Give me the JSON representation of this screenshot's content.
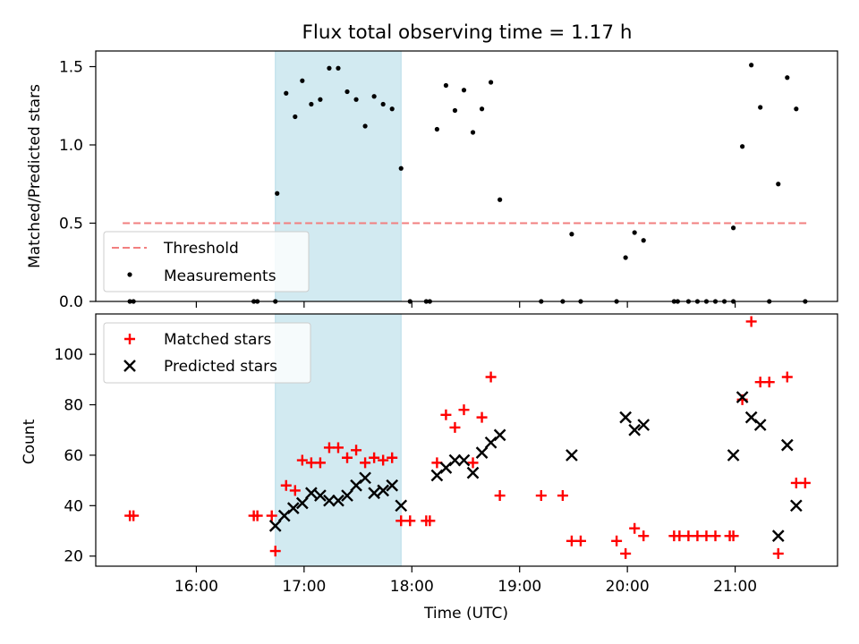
{
  "chart_data": [
    {
      "type": "scatter",
      "title": "Flux total observing time = 1.17 h",
      "ylabel": "Matched/Predicted stars",
      "xlim": [
        "15:04",
        "21:57"
      ],
      "ylim": [
        0,
        1.6
      ],
      "yticks": [
        "0.0",
        "0.5",
        "1.0",
        "1.5"
      ],
      "grid": false,
      "legend_position": "lower-left",
      "highlight_span": {
        "start": "16:44",
        "end": "17:54",
        "color": "#d2eaf1"
      },
      "threshold": {
        "name": "Threshold",
        "value": 0.5,
        "x_start": "15:19",
        "x_end": "21:41",
        "color": "#f27f7f",
        "style": "dashed"
      },
      "series": [
        {
          "name": "Measurements",
          "color": "#000000",
          "marker": "dot",
          "points": [
            [
              "15:23",
              0
            ],
            [
              "15:25",
              0
            ],
            [
              "16:32",
              0
            ],
            [
              "16:34",
              0
            ],
            [
              "16:44",
              0
            ],
            [
              "16:45",
              0.69
            ],
            [
              "16:50",
              1.33
            ],
            [
              "16:55",
              1.18
            ],
            [
              "16:59",
              1.41
            ],
            [
              "17:04",
              1.26
            ],
            [
              "17:09",
              1.29
            ],
            [
              "17:14",
              1.49
            ],
            [
              "17:19",
              1.49
            ],
            [
              "17:24",
              1.34
            ],
            [
              "17:29",
              1.29
            ],
            [
              "17:34",
              1.12
            ],
            [
              "17:39",
              1.31
            ],
            [
              "17:44",
              1.26
            ],
            [
              "17:49",
              1.23
            ],
            [
              "17:54",
              0.85
            ],
            [
              "17:59",
              0
            ],
            [
              "18:08",
              0
            ],
            [
              "18:10",
              0
            ],
            [
              "18:14",
              1.1
            ],
            [
              "18:19",
              1.38
            ],
            [
              "18:24",
              1.22
            ],
            [
              "18:29",
              1.35
            ],
            [
              "18:34",
              1.08
            ],
            [
              "18:39",
              1.23
            ],
            [
              "18:44",
              1.4
            ],
            [
              "18:49",
              0.65
            ],
            [
              "19:12",
              0
            ],
            [
              "19:24",
              0
            ],
            [
              "19:29",
              0.43
            ],
            [
              "19:34",
              0
            ],
            [
              "19:54",
              0
            ],
            [
              "19:59",
              0.28
            ],
            [
              "20:04",
              0.44
            ],
            [
              "20:09",
              0.39
            ],
            [
              "20:26",
              0
            ],
            [
              "20:28",
              0
            ],
            [
              "20:34",
              0
            ],
            [
              "20:39",
              0
            ],
            [
              "20:44",
              0
            ],
            [
              "20:49",
              0
            ],
            [
              "20:54",
              0
            ],
            [
              "20:59",
              0
            ],
            [
              "20:59",
              0.47
            ],
            [
              "21:04",
              0.99
            ],
            [
              "21:09",
              1.51
            ],
            [
              "21:14",
              1.24
            ],
            [
              "21:19",
              0
            ],
            [
              "21:24",
              0.75
            ],
            [
              "21:29",
              1.43
            ],
            [
              "21:34",
              1.23
            ],
            [
              "21:39",
              0
            ]
          ]
        }
      ]
    },
    {
      "type": "scatter",
      "ylabel": "Count",
      "xlabel": "Time (UTC)",
      "xlim": [
        "15:04",
        "21:57"
      ],
      "ylim": [
        16,
        116
      ],
      "xticks": [
        "16:00",
        "17:00",
        "18:00",
        "19:00",
        "20:00",
        "21:00"
      ],
      "yticks": [
        "20",
        "40",
        "60",
        "80",
        "100"
      ],
      "grid": false,
      "legend_position": "upper-left",
      "highlight_span": {
        "start": "16:44",
        "end": "17:54",
        "color": "#d2eaf1"
      },
      "series": [
        {
          "name": "Matched stars",
          "color": "#ff0000",
          "marker": "plus",
          "points": [
            [
              "15:23",
              36
            ],
            [
              "15:25",
              36
            ],
            [
              "16:32",
              36
            ],
            [
              "16:34",
              36
            ],
            [
              "16:42",
              36
            ],
            [
              "16:44",
              22
            ],
            [
              "16:50",
              48
            ],
            [
              "16:55",
              46
            ],
            [
              "16:59",
              58
            ],
            [
              "17:04",
              57
            ],
            [
              "17:09",
              57
            ],
            [
              "17:14",
              63
            ],
            [
              "17:19",
              63
            ],
            [
              "17:24",
              59
            ],
            [
              "17:29",
              62
            ],
            [
              "17:34",
              57
            ],
            [
              "17:39",
              59
            ],
            [
              "17:44",
              58
            ],
            [
              "17:49",
              59
            ],
            [
              "17:54",
              34
            ],
            [
              "17:59",
              34
            ],
            [
              "18:08",
              34
            ],
            [
              "18:10",
              34
            ],
            [
              "18:14",
              57
            ],
            [
              "18:19",
              76
            ],
            [
              "18:24",
              71
            ],
            [
              "18:29",
              78
            ],
            [
              "18:34",
              57
            ],
            [
              "18:39",
              75
            ],
            [
              "18:44",
              91
            ],
            [
              "18:49",
              44
            ],
            [
              "19:12",
              44
            ],
            [
              "19:24",
              44
            ],
            [
              "19:29",
              26
            ],
            [
              "19:34",
              26
            ],
            [
              "19:54",
              26
            ],
            [
              "19:59",
              21
            ],
            [
              "20:04",
              31
            ],
            [
              "20:09",
              28
            ],
            [
              "20:26",
              28
            ],
            [
              "20:29",
              28
            ],
            [
              "20:34",
              28
            ],
            [
              "20:39",
              28
            ],
            [
              "20:44",
              28
            ],
            [
              "20:49",
              28
            ],
            [
              "20:57",
              28
            ],
            [
              "20:59",
              28
            ],
            [
              "21:04",
              82
            ],
            [
              "21:09",
              113
            ],
            [
              "21:14",
              89
            ],
            [
              "21:19",
              89
            ],
            [
              "21:24",
              21
            ],
            [
              "21:29",
              91
            ],
            [
              "21:34",
              49
            ],
            [
              "21:39",
              49
            ]
          ]
        },
        {
          "name": "Predicted stars",
          "color": "#000000",
          "marker": "x",
          "points": [
            [
              "16:44",
              32
            ],
            [
              "16:49",
              36
            ],
            [
              "16:54",
              39
            ],
            [
              "16:59",
              41
            ],
            [
              "17:04",
              45
            ],
            [
              "17:09",
              44
            ],
            [
              "17:14",
              42
            ],
            [
              "17:19",
              42
            ],
            [
              "17:24",
              44
            ],
            [
              "17:29",
              48
            ],
            [
              "17:34",
              51
            ],
            [
              "17:39",
              45
            ],
            [
              "17:44",
              46
            ],
            [
              "17:49",
              48
            ],
            [
              "17:54",
              40
            ],
            [
              "18:14",
              52
            ],
            [
              "18:19",
              55
            ],
            [
              "18:24",
              58
            ],
            [
              "18:29",
              58
            ],
            [
              "18:34",
              53
            ],
            [
              "18:39",
              61
            ],
            [
              "18:44",
              65
            ],
            [
              "18:49",
              68
            ],
            [
              "19:29",
              60
            ],
            [
              "19:59",
              75
            ],
            [
              "20:04",
              70
            ],
            [
              "20:09",
              72
            ],
            [
              "20:59",
              60
            ],
            [
              "21:04",
              83
            ],
            [
              "21:09",
              75
            ],
            [
              "21:14",
              72
            ],
            [
              "21:24",
              28
            ],
            [
              "21:29",
              64
            ],
            [
              "21:34",
              40
            ]
          ]
        }
      ]
    }
  ]
}
